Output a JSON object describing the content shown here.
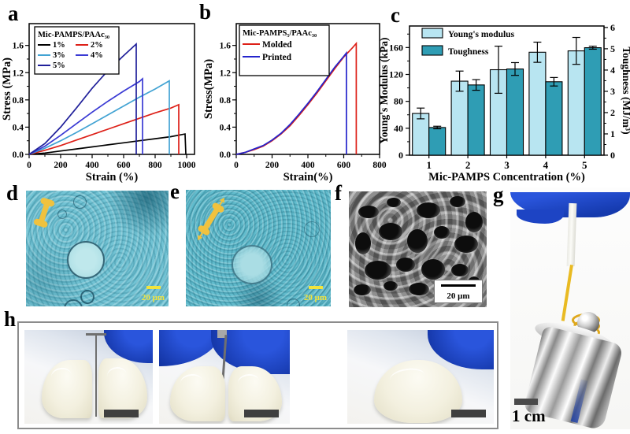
{
  "panels": {
    "a": {
      "label": "a"
    },
    "b": {
      "label": "b"
    },
    "c": {
      "label": "c"
    },
    "d": {
      "label": "d"
    },
    "e": {
      "label": "e"
    },
    "f": {
      "label": "f"
    },
    "g": {
      "label": "g"
    },
    "h": {
      "label": "h"
    }
  },
  "chart_data": [
    {
      "id": "chart-a",
      "type": "line",
      "xlabel": "Strain (%)",
      "ylabel": "Stress (MPa)",
      "xlim": [
        0,
        1050
      ],
      "xticks": [
        0,
        200,
        400,
        600,
        800,
        1000
      ],
      "ylim": [
        0,
        1.92
      ],
      "yticks": [
        "0.0",
        "0.4",
        "0.8",
        "1.2",
        "1.6"
      ],
      "legend_title": "Mic-PAMPS/PAAc₃₀",
      "legend_position": "top-left",
      "grid": false,
      "series": [
        {
          "name": "1%",
          "color": "#000000",
          "points": [
            [
              0,
              0
            ],
            [
              100,
              0.02
            ],
            [
              200,
              0.05
            ],
            [
              300,
              0.08
            ],
            [
              400,
              0.11
            ],
            [
              500,
              0.14
            ],
            [
              600,
              0.17
            ],
            [
              700,
              0.2
            ],
            [
              800,
              0.23
            ],
            [
              900,
              0.26
            ],
            [
              990,
              0.3
            ],
            [
              995,
              0
            ]
          ]
        },
        {
          "name": "2%",
          "color": "#dd2018",
          "points": [
            [
              0,
              0
            ],
            [
              100,
              0.06
            ],
            [
              200,
              0.13
            ],
            [
              300,
              0.21
            ],
            [
              400,
              0.29
            ],
            [
              500,
              0.37
            ],
            [
              600,
              0.45
            ],
            [
              700,
              0.53
            ],
            [
              800,
              0.61
            ],
            [
              900,
              0.68
            ],
            [
              950,
              0.73
            ],
            [
              950,
              0
            ]
          ]
        },
        {
          "name": "3%",
          "color": "#42a3d3",
          "points": [
            [
              0,
              0
            ],
            [
              100,
              0.09
            ],
            [
              200,
              0.2
            ],
            [
              300,
              0.32
            ],
            [
              400,
              0.45
            ],
            [
              500,
              0.58
            ],
            [
              600,
              0.71
            ],
            [
              700,
              0.84
            ],
            [
              800,
              0.96
            ],
            [
              890,
              1.08
            ],
            [
              890,
              0
            ]
          ]
        },
        {
          "name": "4%",
          "color": "#3a3ad4",
          "points": [
            [
              0,
              0
            ],
            [
              100,
              0.12
            ],
            [
              200,
              0.28
            ],
            [
              300,
              0.45
            ],
            [
              400,
              0.62
            ],
            [
              500,
              0.78
            ],
            [
              600,
              0.93
            ],
            [
              700,
              1.07
            ],
            [
              720,
              1.11
            ],
            [
              720,
              0
            ]
          ]
        },
        {
          "name": "5%",
          "color": "#20209a",
          "points": [
            [
              0,
              0
            ],
            [
              100,
              0.16
            ],
            [
              200,
              0.4
            ],
            [
              300,
              0.68
            ],
            [
              400,
              0.97
            ],
            [
              500,
              1.23
            ],
            [
              600,
              1.45
            ],
            [
              680,
              1.62
            ],
            [
              680,
              0
            ]
          ]
        }
      ]
    },
    {
      "id": "chart-b",
      "type": "line",
      "xlabel": "Strain(%)",
      "ylabel": "Stress(MPa)",
      "xlim": [
        0,
        800
      ],
      "xticks": [
        0,
        200,
        400,
        600,
        800
      ],
      "ylim": [
        0,
        1.92
      ],
      "yticks": [
        "0.0",
        "0.4",
        "0.8",
        "1.2",
        "1.6"
      ],
      "legend_title": "Mic-PAMPS₅/PAAc₃₀",
      "legend_position": "top-left",
      "grid": false,
      "series": [
        {
          "name": "Molded",
          "color": "#dd2018",
          "points": [
            [
              0,
              0
            ],
            [
              50,
              0.03
            ],
            [
              100,
              0.07
            ],
            [
              150,
              0.12
            ],
            [
              200,
              0.2
            ],
            [
              250,
              0.3
            ],
            [
              300,
              0.42
            ],
            [
              350,
              0.57
            ],
            [
              400,
              0.73
            ],
            [
              450,
              0.9
            ],
            [
              500,
              1.08
            ],
            [
              550,
              1.26
            ],
            [
              600,
              1.43
            ],
            [
              650,
              1.57
            ],
            [
              670,
              1.63
            ],
            [
              670,
              0
            ]
          ]
        },
        {
          "name": "Printed",
          "color": "#2424cc",
          "points": [
            [
              0,
              0
            ],
            [
              50,
              0.03
            ],
            [
              100,
              0.08
            ],
            [
              150,
              0.13
            ],
            [
              200,
              0.21
            ],
            [
              250,
              0.31
            ],
            [
              300,
              0.44
            ],
            [
              350,
              0.59
            ],
            [
              400,
              0.75
            ],
            [
              450,
              0.92
            ],
            [
              500,
              1.1
            ],
            [
              550,
              1.28
            ],
            [
              600,
              1.44
            ],
            [
              615,
              1.49
            ],
            [
              615,
              0
            ]
          ]
        }
      ]
    },
    {
      "id": "chart-c",
      "type": "bar",
      "categories": [
        "1",
        "2",
        "3",
        "4",
        "5"
      ],
      "xlabel": "Mic-PAMPS Concentration (%)",
      "ylabel_left": "Young's Modulus (kPa)",
      "ylabel_right": "Toughness (MJ/m³)",
      "ylim_left": [
        0,
        192
      ],
      "yticks_left": [
        0,
        40,
        80,
        120,
        160
      ],
      "ylim_right": [
        0,
        6.07
      ],
      "yticks_right": [
        0,
        1,
        2,
        3,
        4,
        5,
        6
      ],
      "grid": false,
      "legend_position": "top-left",
      "series": [
        {
          "name": "Young's modulus",
          "axis": "left",
          "color": "#b8e5f1",
          "values": [
            62,
            110,
            127,
            153,
            155
          ],
          "errors": [
            8,
            15,
            35,
            15,
            20
          ]
        },
        {
          "name": "Toughness",
          "axis": "right",
          "color": "#2f9db4",
          "values": [
            1.3,
            3.3,
            4.05,
            3.45,
            5.05
          ],
          "errors": [
            0.06,
            0.25,
            0.3,
            0.2,
            0.07
          ]
        }
      ]
    }
  ],
  "micrographs": {
    "d": {
      "scale_bar_label": "20 μm"
    },
    "e": {
      "scale_bar_label": "20 μm"
    },
    "f": {
      "scale_bar_label": "20 μm"
    }
  },
  "photo_g": {
    "scale_bar_label": "1 cm"
  },
  "colors": {
    "young_modulus_bar": "#b8e5f1",
    "toughness_bar": "#2f9db4",
    "micrograph_cyan": "#72c3d4",
    "scale_bar_yellow": "#f2e43c",
    "glove_blue": "#2a55dc"
  }
}
